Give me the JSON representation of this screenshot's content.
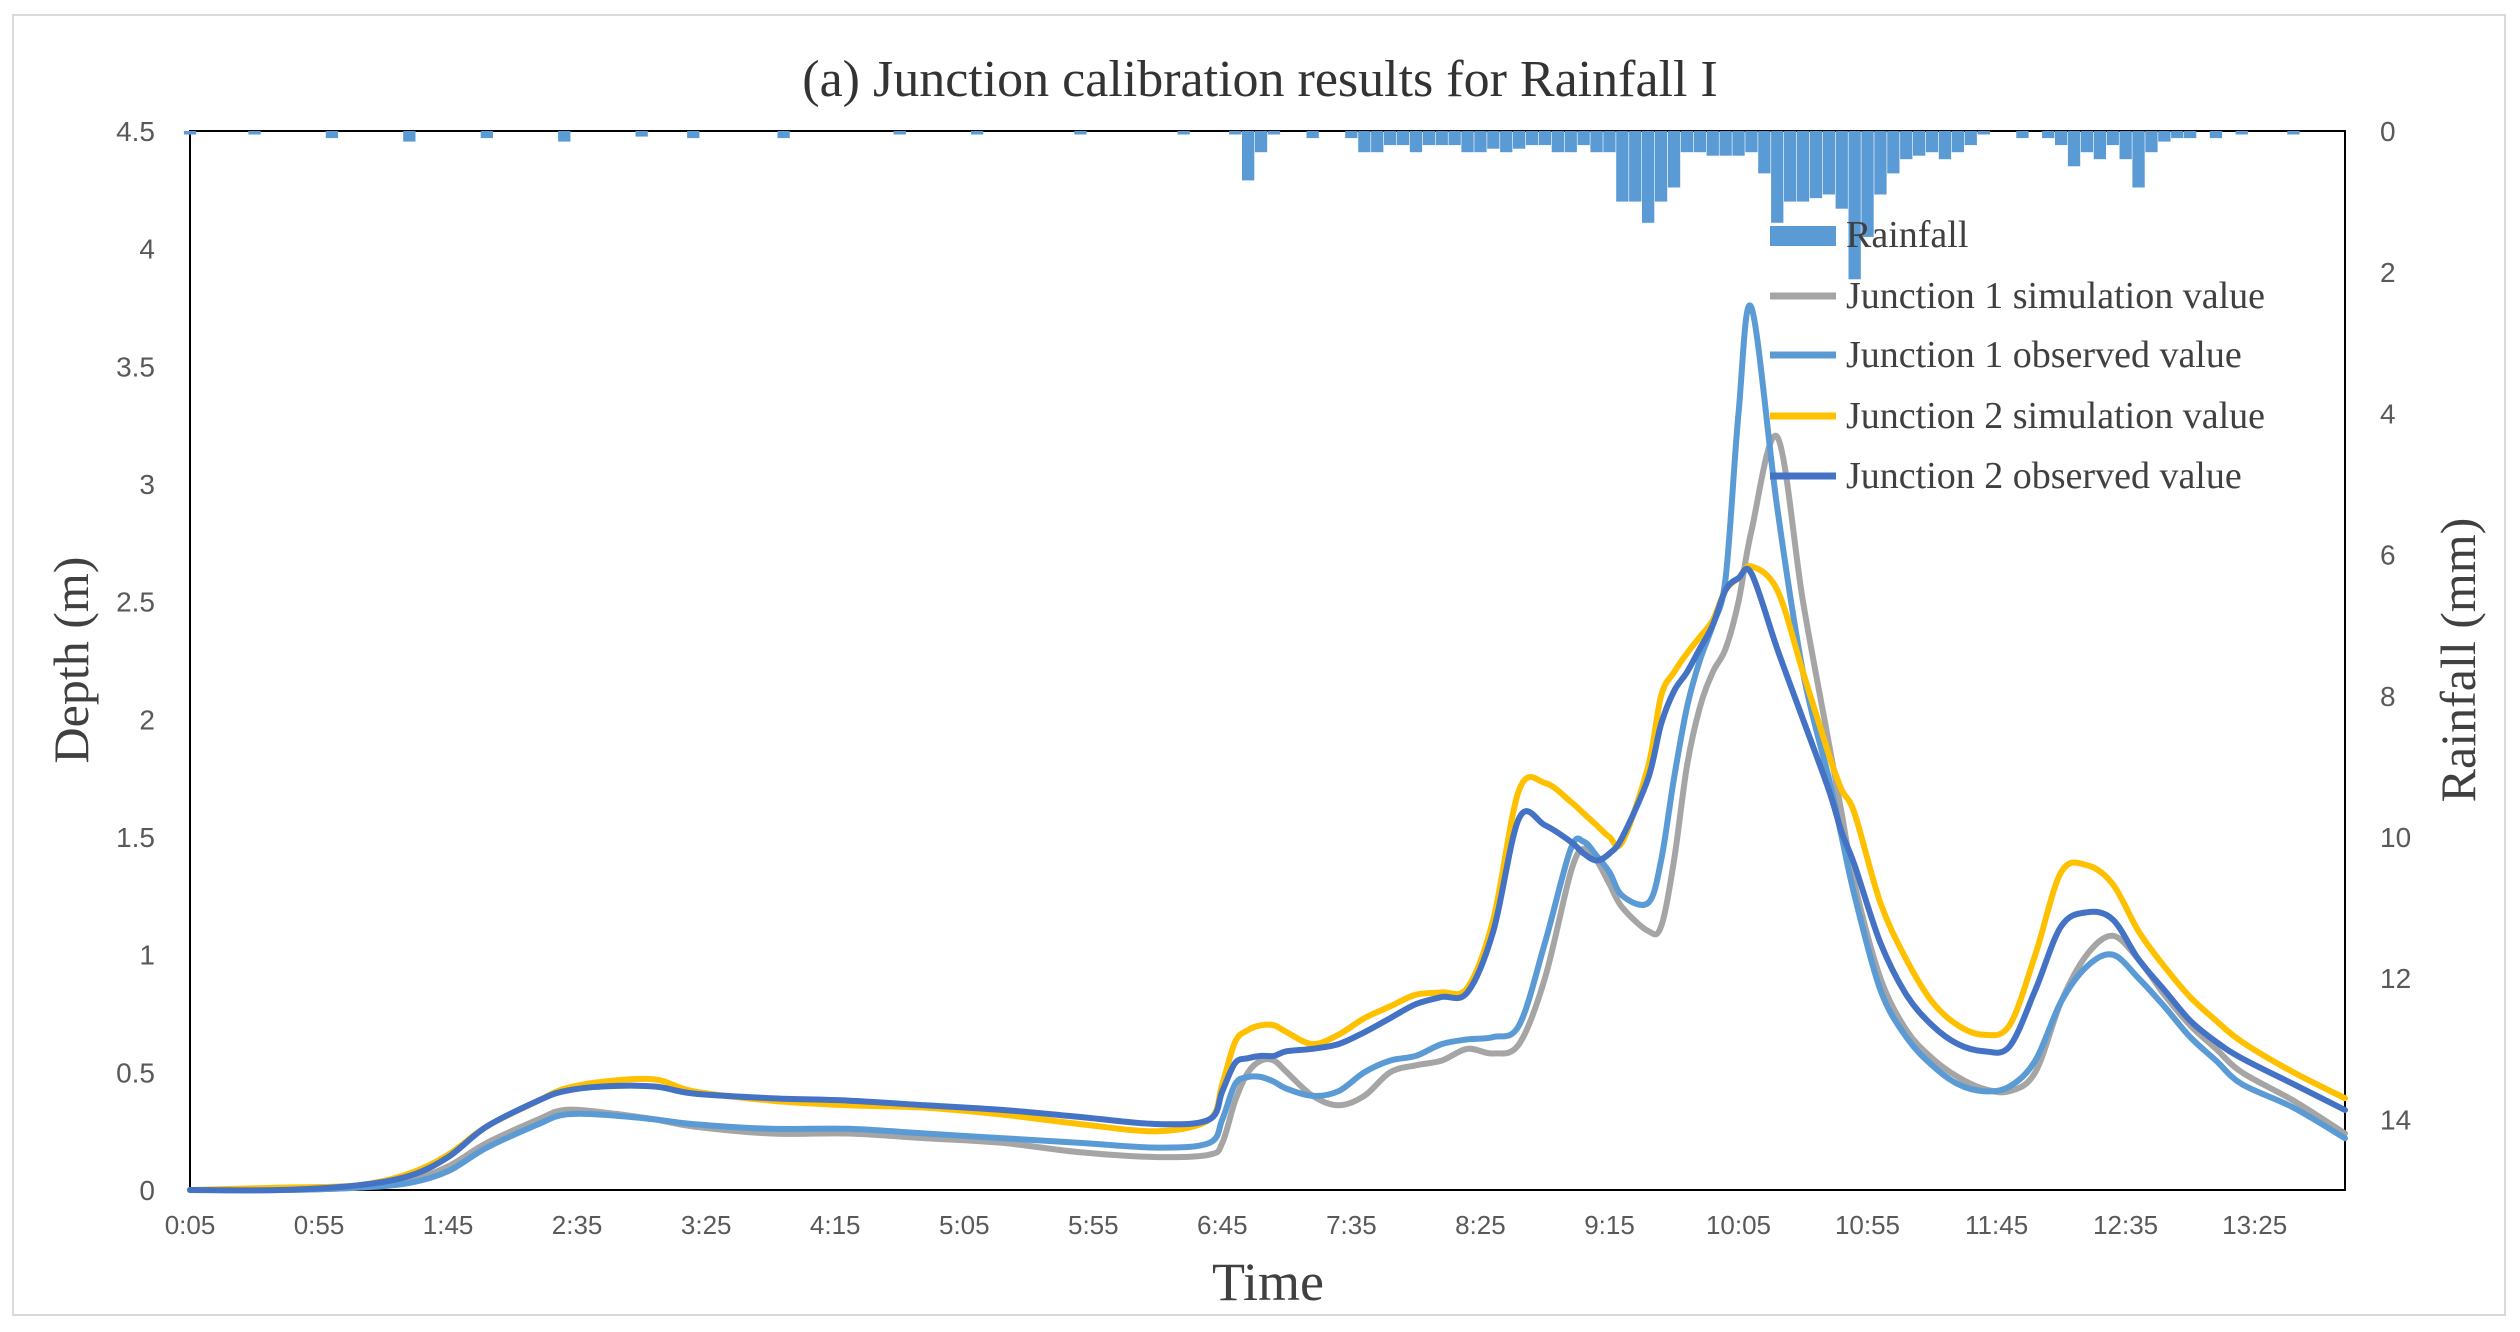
{
  "chart_data": {
    "type": "line",
    "title": "(a)  Junction calibration results for Rainfall I",
    "xlabel": "Time",
    "ylabel": "Depth (m)",
    "y2label": "Rainfall (mm)",
    "ylim": [
      0,
      4.5
    ],
    "y2lim": [
      0,
      15
    ],
    "y2_inverted": true,
    "yticks": [
      "0",
      "0.5",
      "1",
      "1.5",
      "2",
      "2.5",
      "3",
      "3.5",
      "4",
      "4.5"
    ],
    "y2ticks": [
      "0",
      "2",
      "4",
      "6",
      "8",
      "10",
      "12",
      "14"
    ],
    "xticks": [
      "0:05",
      "0:55",
      "1:45",
      "2:35",
      "3:25",
      "4:15",
      "5:05",
      "5:55",
      "6:45",
      "7:35",
      "8:25",
      "9:15",
      "10:05",
      "10:55",
      "11:45",
      "12:35",
      "13:25"
    ],
    "x_unit": "minutes",
    "xlim": [
      5,
      840
    ],
    "legend_position": "top-right",
    "colors": {
      "rainfall": "#5b9bd5",
      "j1_sim": "#a5a5a5",
      "j1_obs": "#5b9bd5",
      "j2_sim": "#ffc000",
      "j2_obs": "#4472c4"
    },
    "rainfall": {
      "name": "Rainfall",
      "x": [
        5,
        30,
        60,
        90,
        120,
        150,
        180,
        200,
        235,
        280,
        310,
        350,
        390,
        410,
        415,
        420,
        425,
        440,
        455,
        460,
        465,
        470,
        475,
        480,
        485,
        490,
        495,
        500,
        505,
        510,
        515,
        520,
        525,
        530,
        535,
        540,
        545,
        550,
        555,
        560,
        565,
        570,
        575,
        580,
        585,
        590,
        595,
        600,
        605,
        610,
        615,
        620,
        625,
        630,
        635,
        640,
        645,
        650,
        655,
        660,
        665,
        670,
        675,
        680,
        685,
        690,
        695,
        700,
        715,
        725,
        730,
        735,
        740,
        745,
        750,
        755,
        760,
        765,
        770,
        775,
        780,
        790,
        800,
        820
      ],
      "values": [
        0.05,
        0.05,
        0.1,
        0.15,
        0.1,
        0.15,
        0.08,
        0.1,
        0.1,
        0.05,
        0.05,
        0.05,
        0.05,
        0.05,
        0.7,
        0.3,
        0.05,
        0.1,
        0.1,
        0.3,
        0.3,
        0.2,
        0.2,
        0.3,
        0.2,
        0.2,
        0.2,
        0.3,
        0.3,
        0.25,
        0.3,
        0.25,
        0.2,
        0.2,
        0.3,
        0.3,
        0.2,
        0.3,
        0.3,
        1.0,
        1.0,
        1.3,
        1.0,
        0.8,
        0.3,
        0.3,
        0.35,
        0.35,
        0.35,
        0.3,
        0.6,
        1.3,
        1.0,
        1.0,
        0.95,
        0.9,
        1.1,
        2.1,
        1.5,
        0.9,
        0.6,
        0.4,
        0.35,
        0.3,
        0.4,
        0.3,
        0.2,
        0.05,
        0.1,
        0.1,
        0.2,
        0.5,
        0.3,
        0.4,
        0.2,
        0.4,
        0.8,
        0.3,
        0.15,
        0.1,
        0.1,
        0.1,
        0.05,
        0.05
      ]
    },
    "series": [
      {
        "name": "Junction 1 simulation value",
        "key": "j1_sim",
        "x": [
          5,
          40,
          70,
          90,
          105,
          120,
          140,
          150,
          165,
          185,
          200,
          230,
          260,
          290,
          320,
          350,
          380,
          400,
          405,
          410,
          415,
          420,
          425,
          430,
          440,
          450,
          460,
          470,
          480,
          490,
          500,
          510,
          520,
          530,
          540,
          545,
          550,
          555,
          560,
          570,
          575,
          580,
          585,
          590,
          595,
          600,
          605,
          610,
          620,
          630,
          640,
          645,
          650,
          660,
          670,
          680,
          690,
          700,
          710,
          720,
          730,
          740,
          750,
          760,
          770,
          780,
          790,
          800,
          820,
          840
        ],
        "y": [
          0,
          0,
          0.01,
          0.04,
          0.1,
          0.2,
          0.3,
          0.34,
          0.33,
          0.3,
          0.27,
          0.24,
          0.24,
          0.22,
          0.2,
          0.16,
          0.14,
          0.15,
          0.2,
          0.38,
          0.5,
          0.55,
          0.55,
          0.5,
          0.4,
          0.36,
          0.4,
          0.5,
          0.53,
          0.55,
          0.6,
          0.58,
          0.62,
          0.9,
          1.35,
          1.45,
          1.4,
          1.3,
          1.2,
          1.1,
          1.12,
          1.4,
          1.8,
          2.05,
          2.2,
          2.3,
          2.5,
          2.8,
          3.2,
          2.5,
          1.9,
          1.6,
          1.3,
          0.9,
          0.68,
          0.56,
          0.48,
          0.43,
          0.42,
          0.5,
          0.8,
          1.0,
          1.08,
          0.98,
          0.83,
          0.7,
          0.6,
          0.5,
          0.38,
          0.24
        ]
      },
      {
        "name": "Junction 1 observed value",
        "key": "j1_obs",
        "x": [
          5,
          40,
          70,
          90,
          105,
          120,
          140,
          150,
          165,
          185,
          200,
          230,
          260,
          290,
          320,
          350,
          380,
          400,
          405,
          410,
          415,
          420,
          425,
          430,
          440,
          450,
          460,
          470,
          480,
          490,
          500,
          510,
          520,
          530,
          540,
          545,
          550,
          555,
          560,
          570,
          575,
          580,
          585,
          590,
          595,
          600,
          605,
          610,
          620,
          630,
          640,
          645,
          650,
          660,
          670,
          680,
          690,
          700,
          710,
          720,
          730,
          740,
          750,
          760,
          770,
          780,
          790,
          800,
          820,
          840
        ],
        "y": [
          0,
          0,
          0.01,
          0.03,
          0.08,
          0.18,
          0.28,
          0.32,
          0.32,
          0.3,
          0.28,
          0.26,
          0.26,
          0.24,
          0.22,
          0.2,
          0.18,
          0.2,
          0.3,
          0.45,
          0.48,
          0.48,
          0.46,
          0.43,
          0.4,
          0.42,
          0.5,
          0.55,
          0.57,
          0.62,
          0.64,
          0.65,
          0.7,
          1.05,
          1.45,
          1.48,
          1.42,
          1.35,
          1.25,
          1.22,
          1.4,
          1.75,
          2.05,
          2.25,
          2.4,
          2.6,
          3.3,
          3.75,
          2.9,
          2.2,
          1.75,
          1.5,
          1.25,
          0.85,
          0.65,
          0.53,
          0.45,
          0.42,
          0.44,
          0.55,
          0.8,
          0.95,
          1.0,
          0.9,
          0.78,
          0.65,
          0.55,
          0.45,
          0.35,
          0.22
        ]
      },
      {
        "name": "Junction 2 simulation value",
        "key": "j2_sim",
        "x": [
          5,
          40,
          70,
          90,
          105,
          120,
          140,
          150,
          165,
          185,
          200,
          230,
          260,
          290,
          320,
          350,
          380,
          400,
          405,
          410,
          415,
          420,
          425,
          430,
          440,
          450,
          460,
          470,
          480,
          490,
          500,
          510,
          520,
          530,
          540,
          545,
          550,
          555,
          560,
          570,
          575,
          580,
          585,
          590,
          595,
          600,
          605,
          610,
          620,
          630,
          640,
          645,
          650,
          660,
          670,
          680,
          690,
          700,
          710,
          720,
          730,
          740,
          750,
          760,
          770,
          780,
          790,
          800,
          820,
          840
        ],
        "y": [
          0,
          0.01,
          0.02,
          0.07,
          0.15,
          0.27,
          0.38,
          0.43,
          0.46,
          0.47,
          0.42,
          0.38,
          0.36,
          0.35,
          0.32,
          0.28,
          0.25,
          0.3,
          0.45,
          0.63,
          0.68,
          0.7,
          0.7,
          0.67,
          0.62,
          0.66,
          0.73,
          0.78,
          0.83,
          0.84,
          0.86,
          1.15,
          1.7,
          1.73,
          1.65,
          1.6,
          1.55,
          1.5,
          1.48,
          1.8,
          2.1,
          2.2,
          2.28,
          2.35,
          2.42,
          2.55,
          2.6,
          2.65,
          2.55,
          2.2,
          1.85,
          1.7,
          1.6,
          1.22,
          0.98,
          0.8,
          0.7,
          0.66,
          0.7,
          1.0,
          1.35,
          1.38,
          1.3,
          1.1,
          0.95,
          0.82,
          0.72,
          0.63,
          0.5,
          0.39
        ]
      },
      {
        "name": "Junction 2 observed value",
        "key": "j2_obs",
        "x": [
          5,
          40,
          70,
          90,
          105,
          120,
          140,
          150,
          165,
          185,
          200,
          230,
          260,
          290,
          320,
          350,
          380,
          400,
          405,
          410,
          415,
          420,
          425,
          430,
          440,
          450,
          460,
          470,
          480,
          490,
          500,
          510,
          520,
          530,
          540,
          545,
          550,
          555,
          560,
          570,
          575,
          580,
          585,
          590,
          595,
          600,
          605,
          610,
          620,
          630,
          640,
          645,
          650,
          660,
          670,
          680,
          690,
          700,
          710,
          720,
          730,
          740,
          750,
          760,
          770,
          780,
          790,
          800,
          820,
          840
        ],
        "y": [
          0,
          0,
          0.02,
          0.06,
          0.14,
          0.27,
          0.38,
          0.42,
          0.44,
          0.44,
          0.41,
          0.39,
          0.38,
          0.36,
          0.34,
          0.31,
          0.28,
          0.3,
          0.42,
          0.54,
          0.56,
          0.57,
          0.57,
          0.59,
          0.6,
          0.62,
          0.67,
          0.73,
          0.79,
          0.82,
          0.84,
          1.1,
          1.58,
          1.55,
          1.48,
          1.43,
          1.4,
          1.43,
          1.5,
          1.75,
          1.98,
          2.12,
          2.2,
          2.3,
          2.4,
          2.55,
          2.6,
          2.62,
          2.3,
          2.0,
          1.7,
          1.52,
          1.38,
          1.05,
          0.83,
          0.7,
          0.62,
          0.59,
          0.61,
          0.85,
          1.12,
          1.18,
          1.15,
          0.98,
          0.85,
          0.72,
          0.63,
          0.56,
          0.45,
          0.34
        ]
      }
    ]
  }
}
